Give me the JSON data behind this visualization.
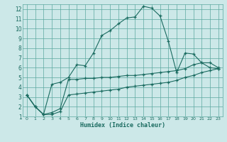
{
  "title": "",
  "xlabel": "Humidex (Indice chaleur)",
  "ylabel": "",
  "bg_color": "#cce8e8",
  "grid_color": "#5ba8a0",
  "line_color": "#1a6b60",
  "xlim": [
    -0.5,
    23.5
  ],
  "ylim": [
    1,
    12.5
  ],
  "xticks": [
    0,
    1,
    2,
    3,
    4,
    5,
    6,
    7,
    8,
    9,
    10,
    11,
    12,
    13,
    14,
    15,
    16,
    17,
    18,
    19,
    20,
    21,
    22,
    23
  ],
  "yticks": [
    1,
    2,
    3,
    4,
    5,
    6,
    7,
    8,
    9,
    10,
    11,
    12
  ],
  "line1_x": [
    0,
    1,
    2,
    3,
    4,
    5,
    6,
    7,
    8,
    9,
    10,
    11,
    12,
    13,
    14,
    15,
    16,
    17,
    18,
    19,
    20,
    21,
    22,
    23
  ],
  "line1_y": [
    3.2,
    2.0,
    1.2,
    4.3,
    4.5,
    5.0,
    6.3,
    6.2,
    7.5,
    9.3,
    9.8,
    10.5,
    11.1,
    11.2,
    12.3,
    12.1,
    11.3,
    8.7,
    5.5,
    7.5,
    7.4,
    6.5,
    6.0,
    5.9
  ],
  "line2_x": [
    0,
    1,
    2,
    3,
    4,
    5,
    6,
    7,
    8,
    9,
    10,
    11,
    12,
    13,
    14,
    15,
    16,
    17,
    18,
    19,
    20,
    21,
    22,
    23
  ],
  "line2_y": [
    3.2,
    2.0,
    1.2,
    1.4,
    1.8,
    4.8,
    4.8,
    4.9,
    4.9,
    5.0,
    5.0,
    5.1,
    5.2,
    5.2,
    5.3,
    5.4,
    5.5,
    5.6,
    5.7,
    5.9,
    6.3,
    6.5,
    6.5,
    6.0
  ],
  "line3_x": [
    0,
    1,
    2,
    3,
    4,
    5,
    6,
    7,
    8,
    9,
    10,
    11,
    12,
    13,
    14,
    15,
    16,
    17,
    18,
    19,
    20,
    21,
    22,
    23
  ],
  "line3_y": [
    3.2,
    2.0,
    1.2,
    1.2,
    1.5,
    3.2,
    3.3,
    3.4,
    3.5,
    3.6,
    3.7,
    3.8,
    4.0,
    4.1,
    4.2,
    4.3,
    4.4,
    4.5,
    4.7,
    5.0,
    5.2,
    5.5,
    5.7,
    5.9
  ]
}
